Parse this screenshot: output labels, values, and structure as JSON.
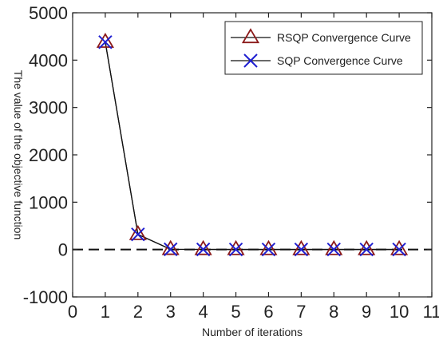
{
  "chart_data": {
    "type": "line",
    "xlabel": "Number of iterations",
    "ylabel": "The value of the objective function",
    "xlim": [
      0,
      11
    ],
    "ylim": [
      -1000,
      5000
    ],
    "xticks": [
      "0",
      "1",
      "2",
      "3",
      "4",
      "5",
      "6",
      "7",
      "8",
      "9",
      "10",
      "11"
    ],
    "yticks": [
      "5000",
      "4000",
      "3000",
      "2000",
      "1000",
      "0",
      "-1000"
    ],
    "reference_line": {
      "y": 0,
      "style": "dashed"
    },
    "grid": false,
    "legend_position": "top-right",
    "x": [
      1,
      2,
      3,
      4,
      5,
      6,
      7,
      8,
      9,
      10
    ],
    "series": [
      {
        "name": "RSQP Convergence Curve",
        "marker": "triangle",
        "color": "#8b1a1a",
        "values": [
          4380,
          320,
          5,
          3,
          2,
          2,
          2,
          2,
          2,
          2
        ]
      },
      {
        "name": "SQP Convergence Curve",
        "marker": "x",
        "color": "#1f1fd1",
        "values": [
          4380,
          320,
          5,
          3,
          2,
          2,
          2,
          2,
          2,
          2
        ]
      }
    ]
  }
}
